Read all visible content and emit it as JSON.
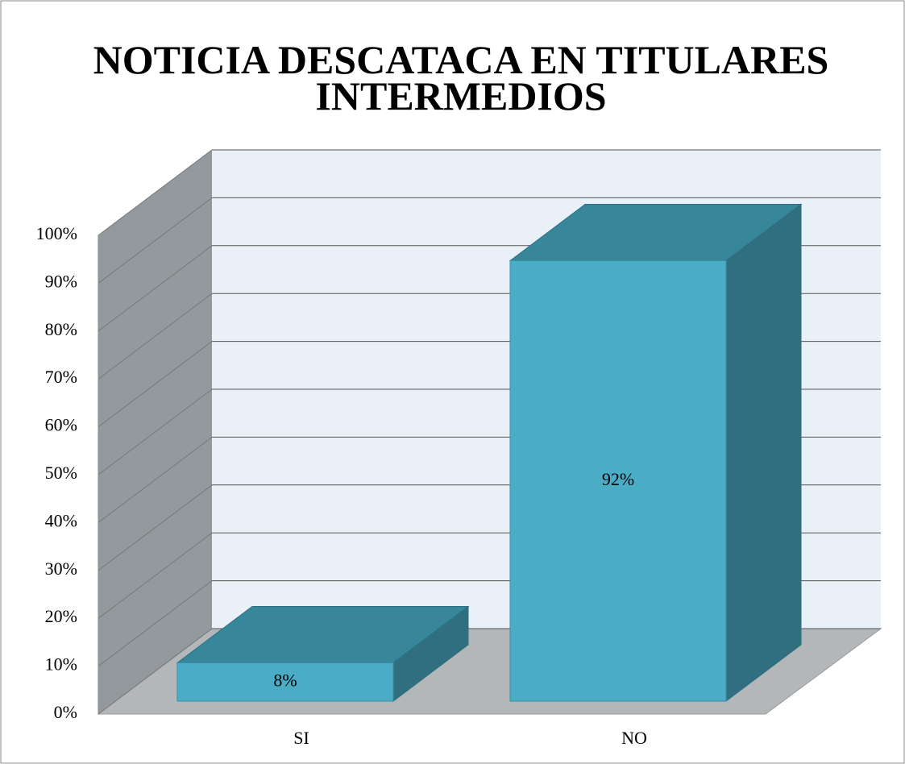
{
  "chart_data": {
    "type": "bar3d",
    "title": "NOTICIA DESCATACA EN TITULARES INTERMEDIOS",
    "categories": [
      "SI",
      "NO"
    ],
    "values": [
      8,
      92
    ],
    "value_labels": [
      "8%",
      "92%"
    ],
    "color": "#4bacc6",
    "ylim": [
      0,
      100
    ],
    "yticks": [
      {
        "value": 0,
        "label": "0%"
      },
      {
        "value": 10,
        "label": "10%"
      },
      {
        "value": 20,
        "label": "20%"
      },
      {
        "value": 30,
        "label": "30%"
      },
      {
        "value": 40,
        "label": "40%"
      },
      {
        "value": 50,
        "label": "50%"
      },
      {
        "value": 60,
        "label": "60%"
      },
      {
        "value": 70,
        "label": "70%"
      },
      {
        "value": 80,
        "label": "80%"
      },
      {
        "value": 90,
        "label": "90%"
      },
      {
        "value": 100,
        "label": "100%"
      }
    ],
    "grid": true
  }
}
